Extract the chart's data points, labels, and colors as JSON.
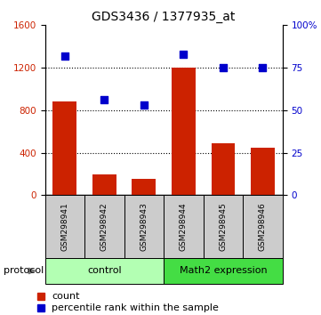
{
  "title": "GDS3436 / 1377935_at",
  "samples": [
    "GSM298941",
    "GSM298942",
    "GSM298943",
    "GSM298944",
    "GSM298945",
    "GSM298946"
  ],
  "counts": [
    880,
    200,
    155,
    1200,
    490,
    450
  ],
  "percentiles": [
    82,
    56,
    53,
    83,
    75,
    75
  ],
  "bar_color": "#cc2200",
  "scatter_color": "#0000cc",
  "ylim_left": [
    0,
    1600
  ],
  "ylim_right": [
    0,
    100
  ],
  "yticks_left": [
    0,
    400,
    800,
    1200,
    1600
  ],
  "ytick_labels_left": [
    "0",
    "400",
    "800",
    "1200",
    "1600"
  ],
  "yticks_right": [
    0,
    25,
    50,
    75,
    100
  ],
  "ytick_labels_right": [
    "0",
    "25",
    "50",
    "75",
    "100%"
  ],
  "groups": [
    {
      "label": "control",
      "indices": [
        0,
        1,
        2
      ],
      "color": "#b3ffb3"
    },
    {
      "label": "Math2 expression",
      "indices": [
        3,
        4,
        5
      ],
      "color": "#44dd44"
    }
  ],
  "protocol_label": "protocol",
  "legend_count_label": "count",
  "legend_percentile_label": "percentile rank within the sample",
  "grid_yticks": [
    400,
    800,
    1200
  ],
  "tick_label_color_left": "#cc2200",
  "tick_label_color_right": "#0000cc",
  "sample_box_color": "#cccccc",
  "title_fontsize": 10
}
